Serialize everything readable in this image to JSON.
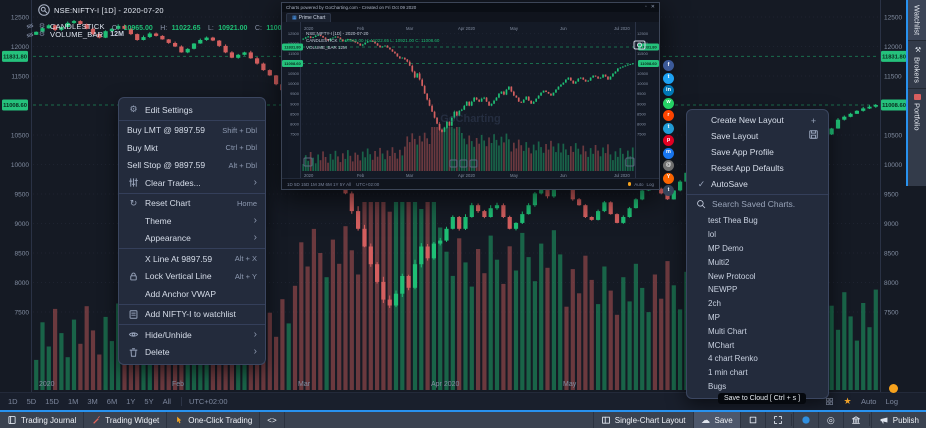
{
  "header": {
    "symbol_line": "NSE:NIFTY-I [1D] - 2020-07-20",
    "candlestick": {
      "name": "CANDLESTICK",
      "o_label": "O:",
      "o": "10965.00",
      "h_label": "H:",
      "h": "11022.65",
      "l_label": "L:",
      "l": "10921.00",
      "c_label": "C:",
      "c": "11008.60"
    },
    "volume": {
      "name": "VOLUME_BAR",
      "value": "12M"
    }
  },
  "chart": {
    "type": "candlestick",
    "open0": 12200,
    "closes": [
      12250,
      12310,
      12360,
      12280,
      12330,
      12400,
      12430,
      12380,
      12300,
      12210,
      12150,
      12260,
      12300,
      12350,
      12300,
      12210,
      12110,
      12160,
      12220,
      12180,
      12120,
      12060,
      12000,
      11900,
      11960,
      12050,
      12110,
      12150,
      12100,
      12010,
      11900,
      11810,
      11860,
      11900,
      11800,
      11710,
      11600,
      11510,
      11360,
      11260,
      11300,
      11210,
      11100,
      10900,
      10610,
      10310,
      10510,
      10210,
      9900,
      9510,
      9210,
      8910,
      8610,
      8310,
      8010,
      7710,
      7610,
      7810,
      8110,
      7910,
      8310,
      8610,
      8410,
      8660,
      8710,
      8910,
      9110,
      8910,
      9110,
      9310,
      9210,
      9110,
      9260,
      9310,
      9110,
      8910,
      9010,
      9160,
      9310,
      9510,
      9610,
      9460,
      9710,
      9860,
      9610,
      9410,
      9310,
      9110,
      9060,
      9210,
      9360,
      9160,
      9010,
      9110,
      9260,
      9410,
      9560,
      9660,
      9590,
      9510,
      9410,
      9560,
      9710,
      9860,
      9960,
      10060,
      10210,
      10310,
      10160,
      10010,
      10110,
      10260,
      10310,
      10210,
      10110,
      10160,
      10310,
      10410,
      10360,
      10260,
      10310,
      10460,
      10360,
      10210,
      10360,
      10510,
      10610,
      10760,
      10810,
      10860,
      10910,
      10950,
      10980,
      11008.6
    ],
    "ticks": [
      12500,
      12000,
      11500,
      10500,
      10000,
      9500,
      9000,
      8500,
      8000,
      7500
    ],
    "tags": [
      {
        "price": 11831.8,
        "label": "11831.80"
      },
      {
        "price": 11008.6,
        "label": "11008.60"
      }
    ],
    "months": [
      {
        "i": 1,
        "label": "2020"
      },
      {
        "i": 22,
        "label": "Feb"
      },
      {
        "i": 42,
        "label": "Mar"
      },
      {
        "i": 63,
        "label": "Apr 2020"
      },
      {
        "i": 84,
        "label": "May"
      },
      {
        "i": 104,
        "label": "Jun"
      },
      {
        "i": 126,
        "label": "Jul 2020"
      }
    ],
    "colors": {
      "up": "#1fbf75",
      "down": "#d45f5f",
      "tag": "#25c17c"
    }
  },
  "context_menu": {
    "sections": [
      [
        {
          "icon": "gear",
          "label": "Edit Settings"
        }
      ],
      [
        {
          "label": "Buy LMT @ 9897.59",
          "shortcut": "Shift + Dbl",
          "noicon": true
        },
        {
          "label": "Buy Mkt",
          "shortcut": "Ctrl + Dbl",
          "noicon": true
        },
        {
          "label": "Sell Stop @ 9897.59",
          "shortcut": "Alt + Dbl",
          "noicon": true
        },
        {
          "icon": "sliders",
          "label": "Clear Trades...",
          "arrow": true
        }
      ],
      [
        {
          "icon": "refresh",
          "label": "Reset Chart",
          "shortcut": "Home"
        },
        {
          "label": "Theme",
          "arrow": true
        },
        {
          "label": "Appearance",
          "arrow": true
        }
      ],
      [
        {
          "label": "X Line At 9897.59",
          "shortcut": "Alt + X"
        },
        {
          "icon": "lock",
          "label": "Lock Vertical Line",
          "shortcut": "Alt + Y"
        },
        {
          "label": "Add Anchor VWAP"
        }
      ],
      [
        {
          "icon": "note",
          "label": "Add NIFTY-I to watchlist"
        }
      ],
      [
        {
          "icon": "eye",
          "label": "Hide/Unhide",
          "arrow": true
        },
        {
          "icon": "trash",
          "label": "Delete",
          "arrow": true
        }
      ]
    ]
  },
  "layout_menu": {
    "items": [
      {
        "label": "Create New Layout",
        "right_icon": "plus"
      },
      {
        "label": "Save Layout",
        "right_icon": "floppy"
      },
      {
        "label": "Save App Profile"
      },
      {
        "label": "Reset App Defaults"
      },
      {
        "label": "AutoSave",
        "icon": "check"
      }
    ],
    "search_placeholder": "Search Saved Charts.",
    "charts": [
      "test Thea Bug",
      "lol",
      "MP Demo",
      "Multi2",
      "New Protocol",
      "NEWPP",
      "2ch",
      "MP",
      "Multi Chart",
      "MChart",
      "4 chart Renko",
      "1 min chart",
      "Bugs"
    ]
  },
  "popup": {
    "header": "Charts powered by GoCharting.com - Created on Fri Oct 09 2020",
    "tab": "Prime Chart",
    "watermark": "GoCharting",
    "timeframes": "1D  5D  15D  1M  3M  6M  1Y  5Y  All",
    "tz": "UTC+02:00",
    "auto": "Auto",
    "log": "Log"
  },
  "social": [
    {
      "name": "facebook",
      "color": "#3b5998",
      "letter": "f"
    },
    {
      "name": "twitter",
      "color": "#1da1f2",
      "letter": "t"
    },
    {
      "name": "linkedin",
      "color": "#0077b5",
      "letter": "in"
    },
    {
      "name": "whatsapp",
      "color": "#25d366",
      "letter": "w"
    },
    {
      "name": "reddit",
      "color": "#ff4500",
      "letter": "r"
    },
    {
      "name": "telegram",
      "color": "#229ed9",
      "letter": "t"
    },
    {
      "name": "pinterest",
      "color": "#e60023",
      "letter": "p"
    },
    {
      "name": "messenger",
      "color": "#1877f2",
      "letter": "m"
    },
    {
      "name": "email",
      "color": "#737373",
      "letter": "@"
    },
    {
      "name": "hackernews",
      "color": "#ff6600",
      "letter": "Y"
    },
    {
      "name": "tumblr",
      "color": "#36465d",
      "letter": "t"
    }
  ],
  "side_tabs": [
    {
      "label": "Watchlist",
      "active": true
    },
    {
      "label": "Brokers",
      "icon": "wrench"
    },
    {
      "label": "Portfolio",
      "square": "#d95f5f"
    }
  ],
  "tf_bar": {
    "items": [
      "1D",
      "5D",
      "15D",
      "1M",
      "3M",
      "6M",
      "1Y",
      "5Y",
      "All"
    ],
    "tz": "UTC+02:00",
    "auto": "Auto",
    "log": "Log"
  },
  "tooltip": "Save to Cloud [ Ctrl + s ]",
  "toolbar": {
    "left": [
      {
        "icon": "book",
        "label": "Trading Journal"
      },
      {
        "icon": "widget",
        "label": "Trading Widget",
        "icon_color": "#e0635a"
      },
      {
        "icon": "hand",
        "label": "One-Click Trading",
        "icon_color": "#f5a623"
      },
      {
        "label": "<>"
      }
    ],
    "right": [
      {
        "icon": "layout",
        "label": "Single-Chart Layout"
      },
      {
        "icon": "cloud",
        "label": "Save",
        "emph": true
      },
      {
        "icon": "stop"
      },
      {
        "icon": "expand"
      },
      {
        "divider": true
      },
      {
        "icon": "chat",
        "icon_color": "#2f8fe0"
      },
      {
        "icon": "target"
      },
      {
        "icon": "bank"
      },
      {
        "divider": true
      },
      {
        "icon": "megaphone",
        "label": "Publish"
      }
    ]
  }
}
